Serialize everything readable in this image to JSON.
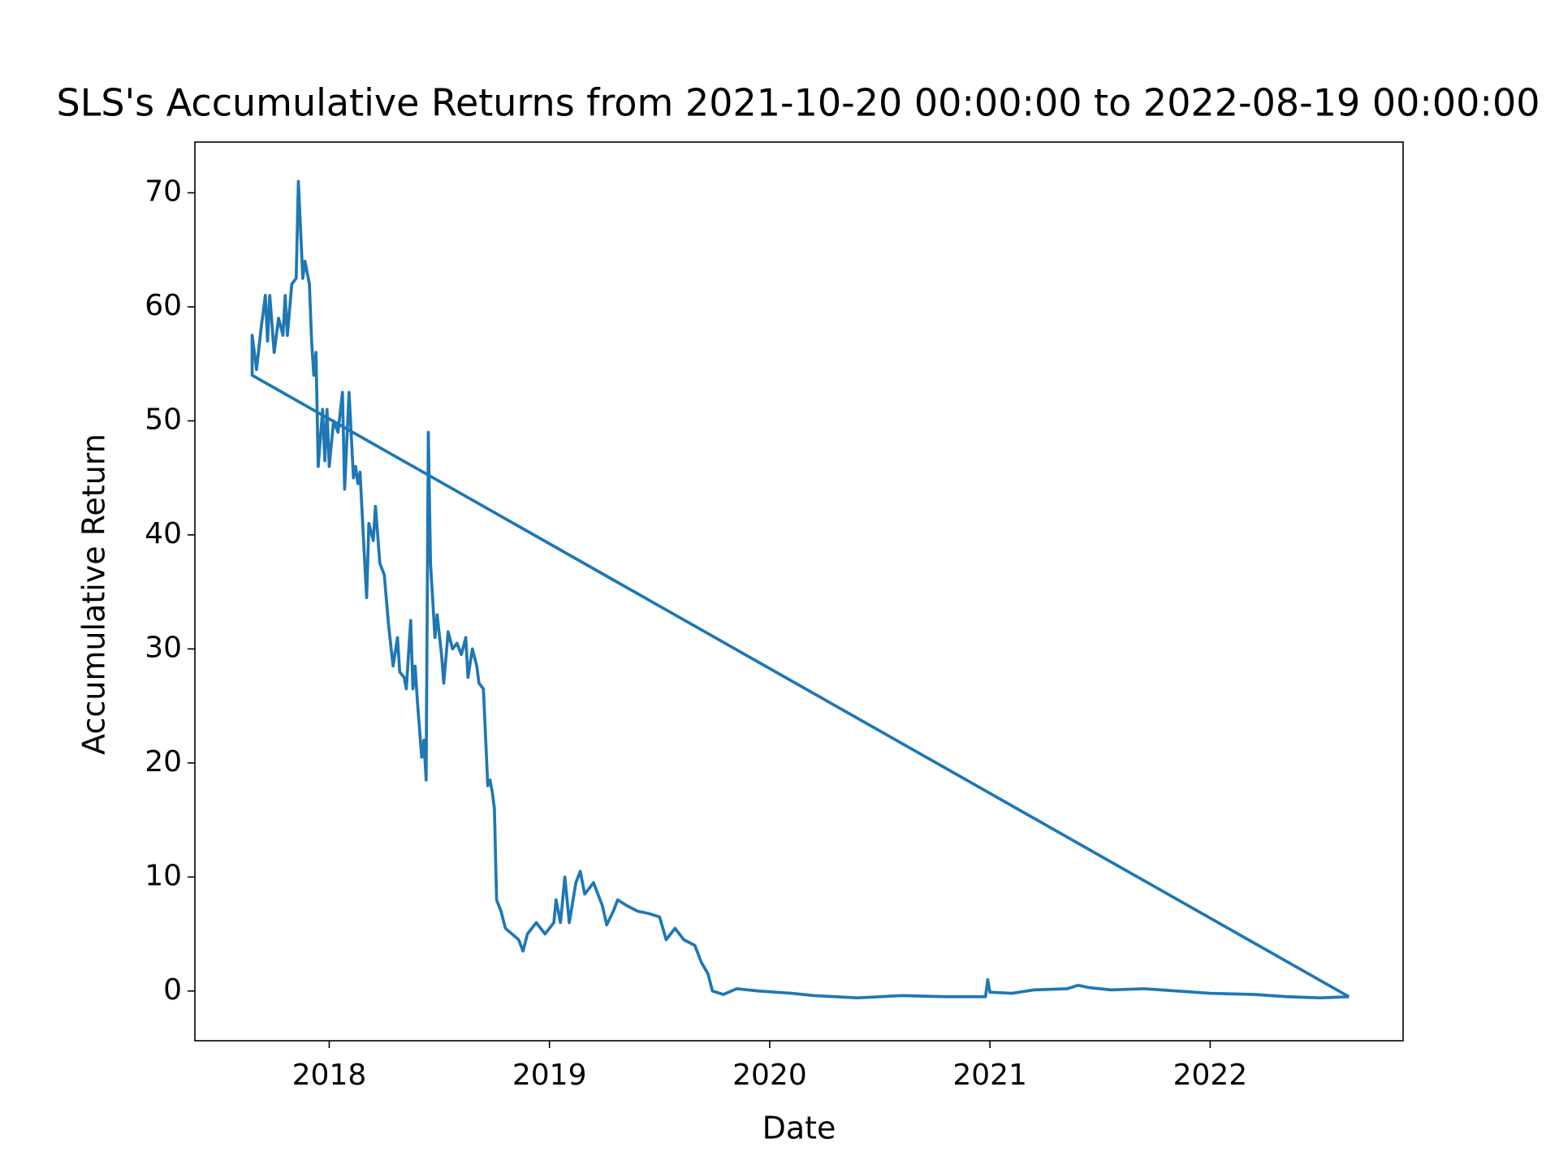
{
  "chart_data": {
    "type": "line",
    "title": "SLS's Accumulative Returns from 2021-10-20 00:00:00 to 2022-08-19 00:00:00",
    "xlabel": "Date",
    "ylabel": "Accumulative Return",
    "color": "#1f77b4",
    "xlim": [
      2017.39,
      2022.876
    ],
    "xticks": [
      2018,
      2019,
      2020,
      2021,
      2022
    ],
    "ylim": [
      -4.36,
      74.45
    ],
    "yticks": [
      0,
      10,
      20,
      30,
      40,
      50,
      60,
      70
    ],
    "x": [
      2022.63,
      2017.65,
      2017.65,
      2017.67,
      2017.69,
      2017.71,
      2017.72,
      2017.73,
      2017.75,
      2017.77,
      2017.79,
      2017.8,
      2017.81,
      2017.83,
      2017.85,
      2017.86,
      2017.88,
      2017.89,
      2017.91,
      2017.92,
      2017.93,
      2017.94,
      2017.95,
      2017.97,
      2017.98,
      2017.99,
      2018.0,
      2018.02,
      2018.04,
      2018.06,
      2018.07,
      2018.09,
      2018.11,
      2018.12,
      2018.13,
      2018.14,
      2018.16,
      2018.17,
      2018.18,
      2018.2,
      2018.21,
      2018.23,
      2018.25,
      2018.27,
      2018.29,
      2018.31,
      2018.32,
      2018.34,
      2018.35,
      2018.37,
      2018.38,
      2018.39,
      2018.4,
      2018.42,
      2018.43,
      2018.44,
      2018.45,
      2018.46,
      2018.48,
      2018.49,
      2018.51,
      2018.52,
      2018.54,
      2018.56,
      2018.58,
      2018.6,
      2018.62,
      2018.63,
      2018.65,
      2018.67,
      2018.68,
      2018.7,
      2018.72,
      2018.73,
      2018.74,
      2018.75,
      2018.76,
      2018.78,
      2018.8,
      2018.83,
      2018.86,
      2018.88,
      2018.9,
      2018.94,
      2018.98,
      2019.02,
      2019.03,
      2019.05,
      2019.07,
      2019.09,
      2019.12,
      2019.14,
      2019.16,
      2019.2,
      2019.24,
      2019.26,
      2019.29,
      2019.31,
      2019.35,
      2019.4,
      2019.45,
      2019.5,
      2019.53,
      2019.57,
      2019.61,
      2019.66,
      2019.69,
      2019.72,
      2019.74,
      2019.79,
      2019.85,
      2019.95,
      2020.1,
      2020.2,
      2020.4,
      2020.6,
      2020.8,
      2020.98,
      2020.99,
      2021.0,
      2021.1,
      2021.2,
      2021.35,
      2021.4,
      2021.45,
      2021.55,
      2021.7,
      2021.85,
      2022.0,
      2022.2,
      2022.35,
      2022.5,
      2022.63
    ],
    "values": [
      -0.5,
      54.0,
      57.5,
      54.5,
      58,
      61,
      57,
      61,
      56,
      59,
      57.5,
      61,
      57.5,
      62,
      62.5,
      71,
      62.5,
      64,
      62,
      57,
      54,
      56,
      46,
      51,
      46.5,
      51,
      46,
      50,
      49,
      52.5,
      44,
      52.5,
      45,
      46,
      44.5,
      45.5,
      38,
      34.5,
      41,
      39.5,
      42.5,
      37.5,
      36.5,
      32,
      28.5,
      31,
      28,
      27.5,
      26.5,
      32.5,
      26.5,
      28.5,
      25.5,
      20.5,
      22,
      18.5,
      49,
      37.5,
      31,
      33,
      29.5,
      27,
      31.5,
      30,
      30.5,
      29.5,
      31,
      27.5,
      30,
      28.5,
      27,
      26.5,
      18,
      18.5,
      17.5,
      16,
      8,
      7,
      5.5,
      5,
      4.5,
      3.5,
      5,
      6,
      5,
      6,
      8,
      6,
      10,
      6,
      9.5,
      10.5,
      8.5,
      9.5,
      7.5,
      5.8,
      7,
      8,
      7.5,
      7,
      6.8,
      6.5,
      4.5,
      5.5,
      4.5,
      4,
      2.5,
      1.5,
      0,
      -0.3,
      0.2,
      0,
      -0.2,
      -0.4,
      -0.6,
      -0.4,
      -0.5,
      -0.5,
      1.0,
      -0.1,
      -0.2,
      0.1,
      0.2,
      0.5,
      0.3,
      0.1,
      0.2,
      0.0,
      -0.2,
      -0.3,
      -0.5,
      -0.6,
      -0.5
    ]
  }
}
